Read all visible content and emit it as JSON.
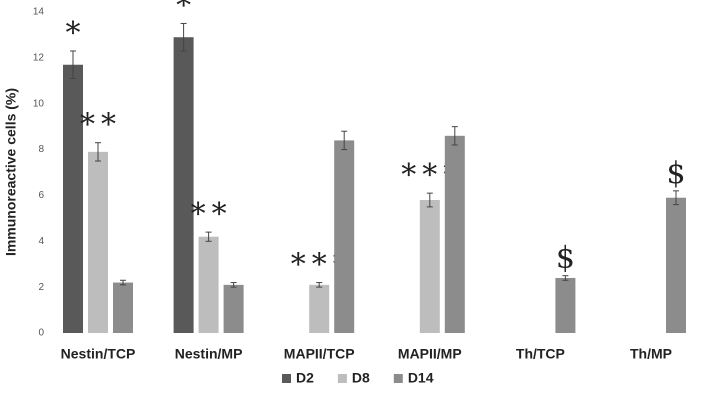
{
  "chart_data": {
    "type": "bar",
    "y_label": "Immunoreactive cells (%)",
    "categories": [
      "Nestin/TCP",
      "Nestin/MP",
      "MAPII/TCP",
      "MAPII/MP",
      "Th/TCP",
      "Th/MP"
    ],
    "series": [
      {
        "name": "D2",
        "color": "#595959",
        "values": [
          11.7,
          12.9,
          null,
          null,
          null,
          null
        ],
        "errors": [
          0.6,
          0.6,
          null,
          null,
          null,
          null
        ],
        "annotations": [
          "*",
          "*",
          null,
          null,
          null,
          null
        ]
      },
      {
        "name": "D8",
        "color": "#bdbdbd",
        "values": [
          7.9,
          4.2,
          2.1,
          5.8,
          null,
          null
        ],
        "errors": [
          0.4,
          0.2,
          0.1,
          0.3,
          null,
          null
        ],
        "annotations": [
          "**",
          "**",
          "***",
          "***",
          null,
          null
        ]
      },
      {
        "name": "D14",
        "color": "#8c8c8c",
        "values": [
          2.2,
          2.1,
          8.4,
          8.6,
          2.4,
          5.9
        ],
        "errors": [
          0.1,
          0.1,
          0.4,
          0.4,
          0.1,
          0.3
        ],
        "annotations": [
          null,
          null,
          null,
          null,
          "$",
          "$"
        ]
      }
    ],
    "ylim": [
      0,
      14
    ],
    "yticks": [
      0,
      2,
      4,
      6,
      8,
      10,
      12,
      14
    ],
    "grid": false,
    "legend": "bottom"
  }
}
